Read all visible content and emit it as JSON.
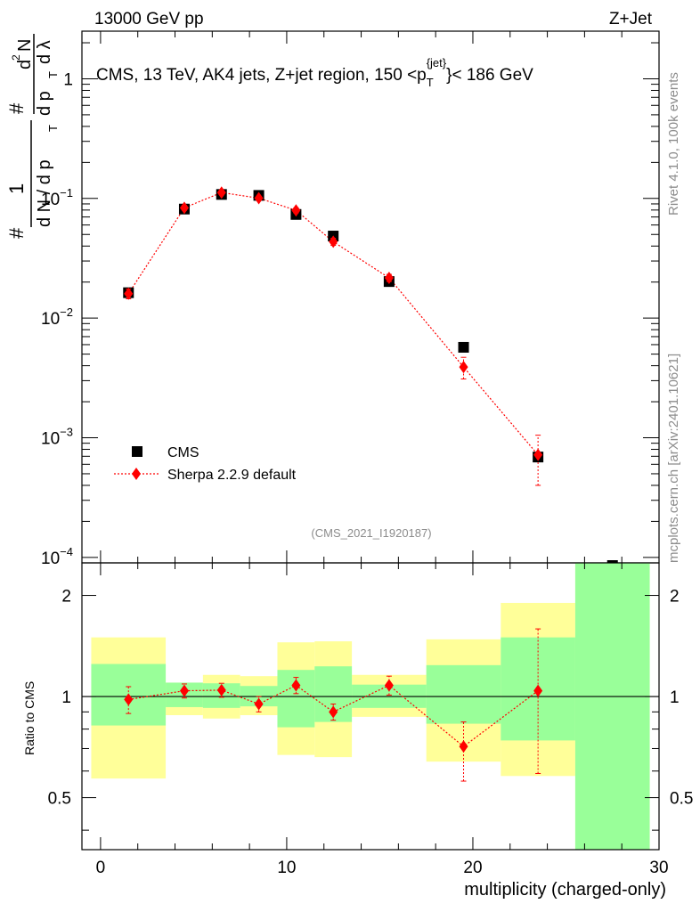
{
  "header": {
    "left": "13000 GeV pp",
    "right": "Z+Jet"
  },
  "side_labels": {
    "rivet": "Rivet 4.1.0,  100k events",
    "mcplots": "mcplots.cern.ch [arXiv:2401.10621]"
  },
  "chart_data": [
    {
      "type": "scatter",
      "panel": "main",
      "title": "CMS, 13 TeV, AK4 jets, Z+jet region, 150 <p",
      "title_sup": "{jet}",
      "title_sub": "T",
      "title_end": "}< 186 GeV",
      "analysis_id": "(CMS_2021_I1920187)",
      "ylabel_parts": [
        "#",
        "1",
        "d N / d p",
        "T",
        "#",
        "d",
        "2",
        "N",
        "d p",
        "T",
        "d λ"
      ],
      "yscale": "log",
      "ylim": [
        9e-05,
        2.5
      ],
      "xlim": [
        -1,
        30
      ],
      "ytick_labels": [
        {
          "base": "1",
          "exp": ""
        },
        {
          "base": "10",
          "exp": "−1"
        },
        {
          "base": "10",
          "exp": "−2"
        },
        {
          "base": "10",
          "exp": "−3"
        },
        {
          "base": "10",
          "exp": "−4"
        }
      ],
      "ytick_values": [
        1,
        0.1,
        0.01,
        0.001,
        0.0001
      ],
      "legend_position": "bottom-left",
      "series": [
        {
          "name": "CMS",
          "color": "#000000",
          "marker": "square",
          "x": [
            1.5,
            4.5,
            6.5,
            8.5,
            10.5,
            12.5,
            15.5,
            19.5,
            23.5,
            27.5
          ],
          "y": [
            0.0163,
            0.0815,
            0.108,
            0.106,
            0.0735,
            0.0485,
            0.0202,
            0.0057,
            0.00069,
            8e-05
          ]
        },
        {
          "name": "Sherpa 2.2.9 default",
          "color": "#ff0000",
          "marker": "diamond",
          "linestyle": "dotted",
          "x": [
            1.5,
            4.5,
            6.5,
            8.5,
            10.5,
            12.5,
            15.5,
            19.5,
            23.5
          ],
          "y": [
            0.016,
            0.0835,
            0.112,
            0.1005,
            0.0795,
            0.0435,
            0.0217,
            0.0039,
            0.00072
          ],
          "yerr_low": [
            0.0015,
            0.004,
            0.005,
            0.004,
            0.004,
            0.003,
            0.0015,
            0.0008,
            0.00032
          ],
          "yerr_high": [
            0.0015,
            0.004,
            0.005,
            0.004,
            0.004,
            0.003,
            0.0015,
            0.0008,
            0.00033
          ]
        }
      ]
    },
    {
      "type": "scatter",
      "panel": "ratio",
      "ylabel": "Ratio to CMS",
      "xlabel": "multiplicity (charged-only)",
      "yscale": "log",
      "ylim": [
        0.35,
        2.5
      ],
      "xlim": [
        -1,
        30
      ],
      "xticks": [
        0,
        10,
        20,
        30
      ],
      "xtick_labels": [
        "0",
        "10",
        "20",
        "30"
      ],
      "yticks": [
        0.5,
        1,
        2
      ],
      "ytick_labels": [
        "0.5",
        "1",
        "2"
      ],
      "reference_line": 1,
      "bands": {
        "edges": [
          -0.5,
          3.5,
          5.5,
          7.5,
          9.5,
          11.5,
          13.5,
          17.5,
          21.5,
          25.5,
          29.5
        ],
        "inner_low": [
          0.82,
          0.93,
          0.925,
          0.935,
          0.81,
          0.84,
          0.925,
          0.83,
          0.74,
          0.3
        ],
        "inner_high": [
          1.25,
          1.1,
          1.095,
          1.075,
          1.2,
          1.23,
          1.085,
          1.24,
          1.5,
          2.6
        ],
        "outer_low": [
          0.57,
          0.88,
          0.86,
          0.88,
          0.67,
          0.66,
          0.87,
          0.64,
          0.58,
          0.3
        ],
        "outer_high": [
          1.5,
          1.1,
          1.16,
          1.15,
          1.45,
          1.46,
          1.16,
          1.48,
          1.9,
          2.6
        ],
        "inner_color": "#99ff99",
        "outer_color": "#ffff99"
      },
      "series": [
        {
          "name": "Sherpa 2.2.9 default / CMS",
          "color": "#ff0000",
          "marker": "diamond",
          "linestyle": "dotted",
          "x": [
            1.5,
            4.5,
            6.5,
            8.5,
            10.5,
            12.5,
            15.5,
            19.5,
            23.5
          ],
          "y": [
            0.98,
            1.04,
            1.045,
            0.95,
            1.08,
            0.9,
            1.08,
            0.71,
            1.04
          ],
          "yerr_low": [
            0.09,
            0.05,
            0.05,
            0.05,
            0.06,
            0.05,
            0.07,
            0.15,
            0.45
          ],
          "yerr_high": [
            0.09,
            0.05,
            0.05,
            0.05,
            0.06,
            0.05,
            0.07,
            0.13,
            0.55
          ]
        }
      ]
    }
  ]
}
